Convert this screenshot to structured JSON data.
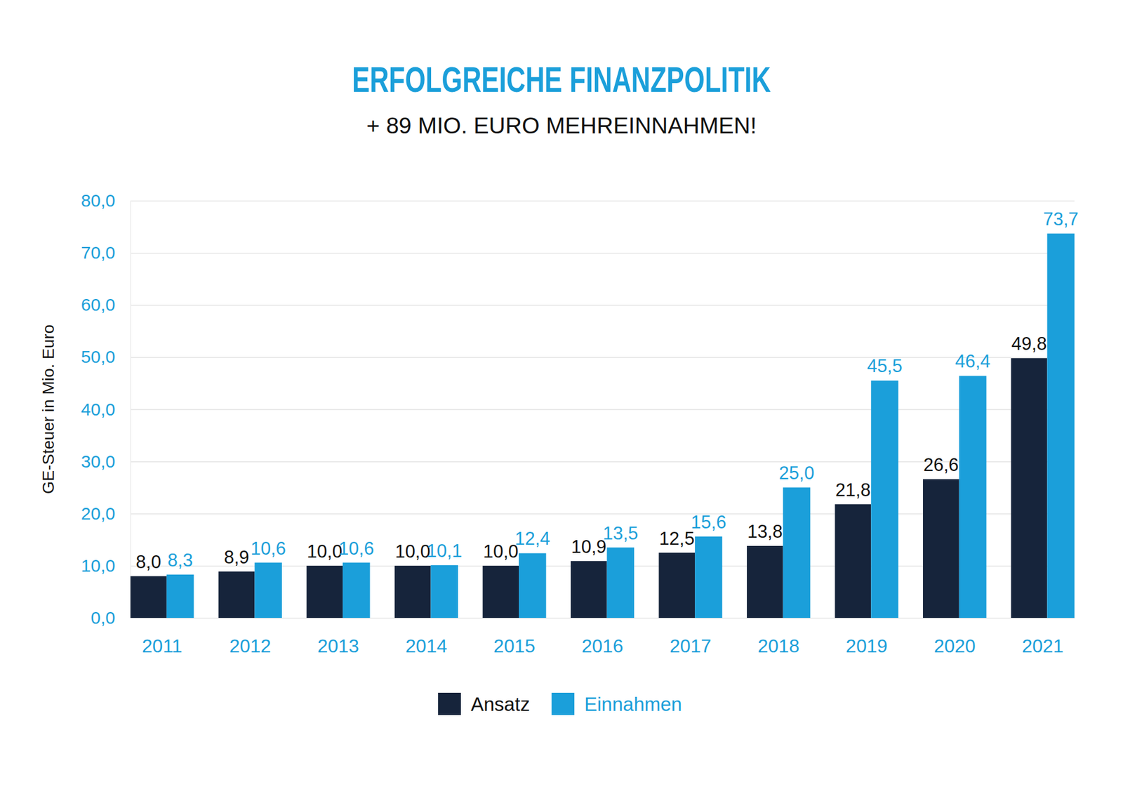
{
  "chart_data": {
    "type": "bar",
    "title": "ERFOLGREICHE FINANZPOLITIK",
    "subtitle": "+ 89 MIO. EURO MEHREINNAHMEN!",
    "ylabel": "GE-Steuer in Mio. Euro",
    "categories": [
      "2011",
      "2012",
      "2013",
      "2014",
      "2015",
      "2016",
      "2017",
      "2018",
      "2019",
      "2020",
      "2021"
    ],
    "series": [
      {
        "name": "Ansatz",
        "color": "#16243b",
        "values": [
          8.0,
          8.9,
          10.0,
          10.0,
          10.0,
          10.9,
          12.5,
          13.8,
          21.8,
          26.6,
          49.8
        ],
        "value_labels": [
          "8,0",
          "8,9",
          "10,0",
          "10,0",
          "10,0",
          "10,9",
          "12,5",
          "13,8",
          "21,8",
          "26,6",
          "49,8"
        ]
      },
      {
        "name": "Einnahmen",
        "color": "#1b9fda",
        "values": [
          8.3,
          10.6,
          10.6,
          10.1,
          12.4,
          13.5,
          15.6,
          25.0,
          45.5,
          46.4,
          73.7
        ],
        "value_labels": [
          "8,3",
          "10,6",
          "10,6",
          "10,1",
          "12,4",
          "13,5",
          "15,6",
          "25,0",
          "45,5",
          "46,4",
          "73,7"
        ]
      }
    ],
    "ylim": [
      0,
      80
    ],
    "yticks": [
      {
        "value": 0,
        "label": "0,0"
      },
      {
        "value": 10,
        "label": "10,0"
      },
      {
        "value": 20,
        "label": "20,0"
      },
      {
        "value": 30,
        "label": "30,0"
      },
      {
        "value": 40,
        "label": "40,0"
      },
      {
        "value": 50,
        "label": "50,0"
      },
      {
        "value": 60,
        "label": "60,0"
      },
      {
        "value": 70,
        "label": "70,0"
      },
      {
        "value": 80,
        "label": "80,0"
      }
    ],
    "grid": true,
    "data_labels": true,
    "legend": "bottom"
  }
}
